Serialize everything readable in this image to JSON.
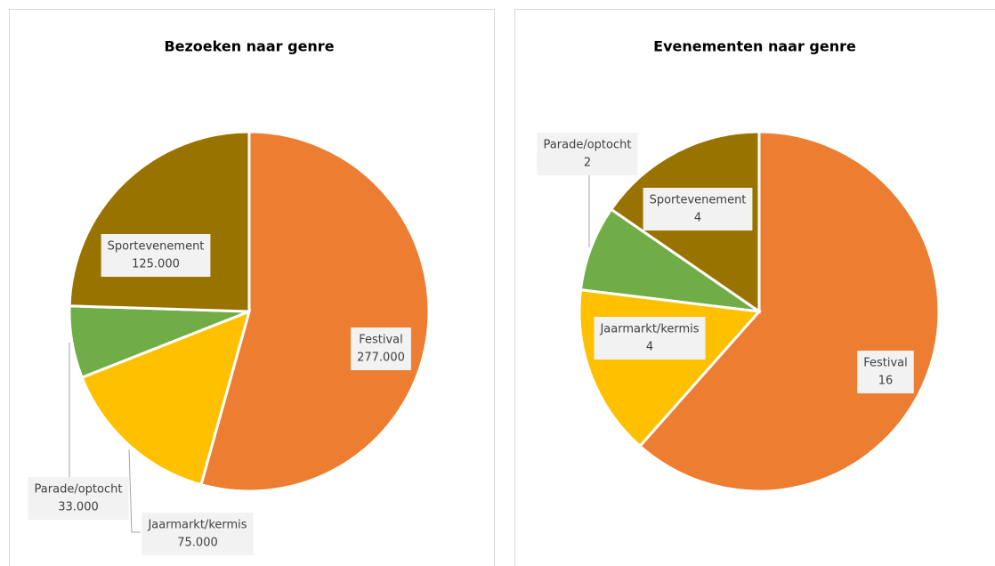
{
  "chart_data": [
    {
      "type": "pie",
      "title": "Bezoeken naar genre",
      "categories": [
        "Festival",
        "Jaarmarkt/kermis",
        "Parade/optocht",
        "Sportevenement"
      ],
      "values": [
        277000,
        75000,
        33000,
        125000
      ],
      "value_labels": [
        "277.000",
        "75.000",
        "33.000",
        "125.000"
      ],
      "colors": [
        "#ed7d31",
        "#ffc000",
        "#70ad47",
        "#997300"
      ]
    },
    {
      "type": "pie",
      "title": "Evenementen naar genre",
      "categories": [
        "Festival",
        "Jaarmarkt/kermis",
        "Parade/optocht",
        "Sportevenement"
      ],
      "values": [
        16,
        4,
        2,
        4
      ],
      "colors": [
        "#ed7d31",
        "#ffc000",
        "#70ad47",
        "#997300"
      ]
    }
  ]
}
